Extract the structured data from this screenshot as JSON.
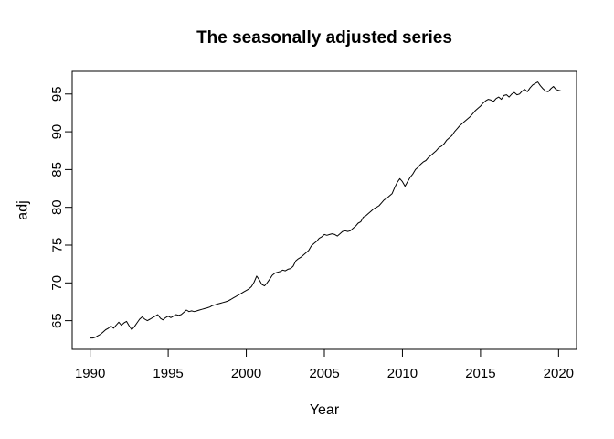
{
  "chart_data": {
    "type": "line",
    "title": "The seasonally adjusted series",
    "xlabel": "Year",
    "ylabel": "adj",
    "x_ticks": [
      1990,
      1995,
      2000,
      2005,
      2010,
      2015,
      2020
    ],
    "y_ticks": [
      65,
      70,
      75,
      80,
      85,
      90,
      95
    ],
    "xlim": [
      1988.85,
      2021.15
    ],
    "ylim": [
      61.2,
      98.0
    ],
    "grid": false,
    "legend": "none",
    "line_color": "#000000",
    "background_color": "#ffffff",
    "series": [
      {
        "name": "adj",
        "start_year": 1990,
        "points_per_year": 6,
        "values": [
          62.7,
          62.7,
          62.8,
          63.0,
          63.2,
          63.5,
          63.8,
          64.0,
          64.3,
          64.0,
          64.4,
          64.8,
          64.4,
          64.7,
          64.9,
          64.3,
          63.8,
          64.2,
          64.7,
          65.2,
          65.5,
          65.2,
          65.0,
          65.2,
          65.4,
          65.6,
          65.8,
          65.3,
          65.1,
          65.4,
          65.6,
          65.4,
          65.6,
          65.8,
          65.7,
          65.8,
          66.1,
          66.4,
          66.2,
          66.3,
          66.2,
          66.3,
          66.4,
          66.5,
          66.6,
          66.7,
          66.8,
          67.0,
          67.1,
          67.2,
          67.3,
          67.4,
          67.5,
          67.6,
          67.8,
          68.0,
          68.2,
          68.4,
          68.6,
          68.8,
          69.0,
          69.2,
          69.5,
          70.1,
          70.9,
          70.4,
          69.8,
          69.6,
          70.0,
          70.5,
          71.0,
          71.3,
          71.4,
          71.5,
          71.7,
          71.6,
          71.8,
          71.9,
          72.2,
          72.9,
          73.2,
          73.4,
          73.7,
          74.0,
          74.3,
          74.9,
          75.2,
          75.5,
          75.9,
          76.1,
          76.4,
          76.3,
          76.4,
          76.5,
          76.4,
          76.2,
          76.5,
          76.8,
          76.9,
          76.8,
          76.9,
          77.2,
          77.5,
          77.9,
          78.1,
          78.7,
          78.9,
          79.2,
          79.5,
          79.8,
          80.0,
          80.2,
          80.6,
          81.0,
          81.2,
          81.5,
          81.8,
          82.6,
          83.3,
          83.8,
          83.4,
          82.8,
          83.4,
          84.0,
          84.4,
          85.0,
          85.3,
          85.7,
          86.0,
          86.2,
          86.6,
          86.9,
          87.2,
          87.5,
          87.9,
          88.1,
          88.4,
          88.9,
          89.2,
          89.5,
          90.0,
          90.4,
          90.8,
          91.1,
          91.4,
          91.7,
          92.0,
          92.4,
          92.8,
          93.1,
          93.4,
          93.8,
          94.1,
          94.3,
          94.2,
          94.0,
          94.4,
          94.6,
          94.3,
          94.8,
          94.9,
          94.6,
          95.0,
          95.2,
          94.9,
          95.0,
          95.4,
          95.6,
          95.3,
          95.8,
          96.2,
          96.4,
          96.6,
          96.1,
          95.7,
          95.4,
          95.3,
          95.7,
          96.0,
          95.6,
          95.5,
          95.4
        ]
      }
    ]
  }
}
